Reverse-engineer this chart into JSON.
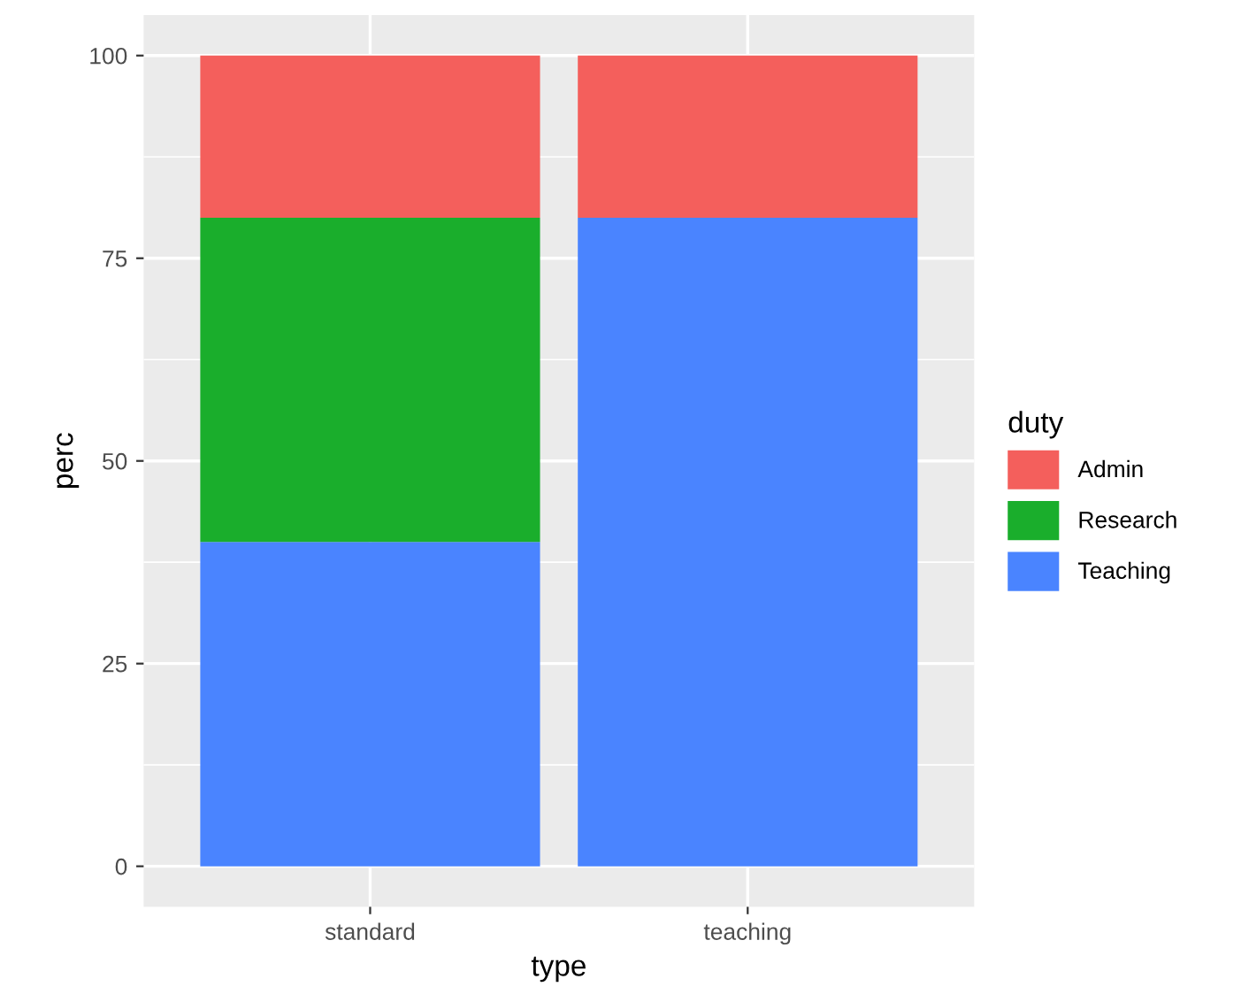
{
  "chart_data": {
    "type": "bar",
    "stacked": true,
    "xlabel": "type",
    "ylabel": "perc",
    "legend_title": "duty",
    "categories": [
      "standard",
      "teaching"
    ],
    "series": [
      {
        "name": "Teaching",
        "color": "#4a84ff",
        "values": [
          40,
          80
        ]
      },
      {
        "name": "Research",
        "color": "#1aae2c",
        "values": [
          40,
          null
        ]
      },
      {
        "name": "Admin",
        "color": "#f45f5c",
        "values": [
          20,
          20
        ]
      }
    ],
    "ylim": [
      -5,
      105
    ],
    "yticks": [
      0,
      25,
      50,
      75,
      100
    ],
    "grid": true,
    "legend": "right"
  }
}
